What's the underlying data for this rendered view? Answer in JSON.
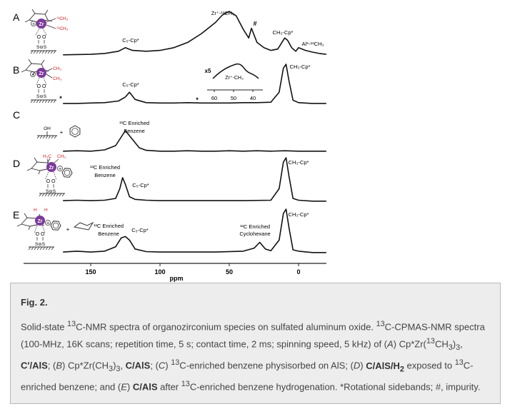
{
  "chart_data": {
    "type": "line",
    "xlabel": "ppm",
    "x_ticks": [
      "150",
      "100",
      "50",
      "0"
    ],
    "xlim": [
      170,
      -20
    ],
    "panels": [
      {
        "label": "A",
        "annotations": [
          "Zr⁺-¹³CH₃",
          "#",
          "CH₃-Cp*",
          "Al*-¹³CH₃",
          "C₅-Cp*"
        ],
        "series": [
          {
            "x": [
              170,
              150,
              140,
              130,
              125,
              120,
              110,
              100,
              90,
              80,
              70,
              60,
              55,
              50,
              45,
              40,
              36,
              34,
              30,
              25,
              20,
              15,
              10,
              8,
              5,
              2,
              0,
              -5,
              -10,
              -15,
              -20
            ],
            "y": [
              0.02,
              0.03,
              0.05,
              0.1,
              0.18,
              0.12,
              0.1,
              0.12,
              0.18,
              0.3,
              0.5,
              0.75,
              0.92,
              1.0,
              0.9,
              0.6,
              0.4,
              0.62,
              0.3,
              0.18,
              0.12,
              0.15,
              0.4,
              0.35,
              0.18,
              0.1,
              0.18,
              0.12,
              0.08,
              0.05,
              0.03
            ]
          }
        ]
      },
      {
        "label": "B",
        "annotations": [
          "CH₃-Cp*",
          "C₅-Cp*",
          "*",
          "*"
        ],
        "inset": {
          "annotations": [
            "x5",
            "Zr⁺-CH₃"
          ],
          "x_ticks": [
            "60",
            "50",
            "40"
          ]
        },
        "series": [
          {
            "x": [
              170,
              160,
              150,
              140,
              130,
              125,
              122,
              118,
              110,
              100,
              90,
              80,
              70,
              60,
              50,
              40,
              30,
              20,
              14,
              11,
              9,
              7,
              4,
              0,
              -10,
              -20
            ],
            "y": [
              0.02,
              0.02,
              0.03,
              0.04,
              0.08,
              0.18,
              0.3,
              0.12,
              0.04,
              0.03,
              0.03,
              0.04,
              0.03,
              0.03,
              0.03,
              0.04,
              0.04,
              0.05,
              0.3,
              0.9,
              1.0,
              0.6,
              0.1,
              0.04,
              0.02,
              0.02
            ]
          }
        ]
      },
      {
        "label": "C",
        "annotations": [
          "¹³C Enriched",
          "Benzene"
        ],
        "series": [
          {
            "x": [
              170,
              160,
              150,
              140,
              132,
              128,
              125,
              120,
              115,
              110,
              100,
              90,
              80,
              70,
              60,
              50,
              40,
              30,
              20,
              10,
              0,
              -10,
              -20
            ],
            "y": [
              0.02,
              0.03,
              0.02,
              0.05,
              0.15,
              0.35,
              0.5,
              0.3,
              0.1,
              0.04,
              0.02,
              0.02,
              0.03,
              0.02,
              0.02,
              0.03,
              0.02,
              0.03,
              0.02,
              0.03,
              0.02,
              0.02,
              0.02
            ]
          }
        ]
      },
      {
        "label": "D",
        "annotations": [
          "¹³C Enriched",
          "Benzene",
          "C₅-Cp*",
          "CH₃-Cp*"
        ],
        "series": [
          {
            "x": [
              170,
              160,
              150,
              140,
              132,
              129,
              127,
              125,
              122,
              118,
              110,
              100,
              80,
              60,
              40,
              20,
              14,
              11,
              9,
              7,
              4,
              0,
              -10,
              -20
            ],
            "y": [
              0.03,
              0.04,
              0.03,
              0.04,
              0.08,
              0.3,
              0.55,
              0.4,
              0.12,
              0.06,
              0.04,
              0.03,
              0.03,
              0.03,
              0.03,
              0.04,
              0.3,
              0.9,
              1.0,
              0.6,
              0.08,
              0.04,
              0.02,
              0.02
            ]
          }
        ]
      },
      {
        "label": "E",
        "annotations": [
          "¹³C Enriched",
          "Benzene",
          "C₅-Cp*",
          "¹³C Enriched",
          "Cyclohexane",
          "CH₃-Cp*"
        ],
        "series": [
          {
            "x": [
              170,
              160,
              150,
              140,
              132,
              128,
              125,
              122,
              118,
              110,
              100,
              80,
              60,
              40,
              32,
              28,
              24,
              20,
              14,
              11,
              9,
              7,
              4,
              0,
              -10,
              -20
            ],
            "y": [
              0.03,
              0.05,
              0.03,
              0.05,
              0.15,
              0.35,
              0.38,
              0.3,
              0.1,
              0.04,
              0.03,
              0.03,
              0.03,
              0.05,
              0.12,
              0.25,
              0.1,
              0.06,
              0.3,
              0.9,
              1.0,
              0.6,
              0.08,
              0.05,
              0.02,
              0.02
            ]
          }
        ]
      }
    ]
  },
  "caption": {
    "title": "Fig. 2.",
    "body_html": "Solid-state <sup>13</sup>C-NMR spectra of organozirconium species on sulfated aluminum oxide. <sup>13</sup>C-CPMAS-NMR spectra (100-MHz, 16K scans; repetition time, 5 s; contact time, 2 ms; spinning speed, 5 kHz) of (<i>A</i>) Cp*Zr(<sup>13</sup>CH<sub>3</sub>)<sub>3</sub>, <b>C′/AlS</b>; (<i>B</i>) Cp*Zr(CH<sub>3</sub>)<sub>3</sub>, <b>C/AlS</b>; (<i>C</i>) <sup>13</sup>C-enriched benzene physisorbed on AlS; (<i>D</i>) <b>C/AlS/H<sub>2</sub></b> exposed to <sup>13</sup>C-enriched benzene; and (<i>E</i>) <b>C/AlS</b> after <sup>13</sup>C-enriched benzene hydrogenation. *Rotational sidebands; #, impurity."
  },
  "colors": {
    "trace": "#111111",
    "accent_red": "#d0201e",
    "zr_purple": "#7c3a9a",
    "caption_bg": "#ededed",
    "caption_border": "#b9b9b9"
  },
  "molecule_labels": {
    "A_methyl_1": "¹³CH₃",
    "A_methyl_2": "¹³CH₃",
    "B_methyl_1": "CH₃",
    "B_methyl_2": "CH₃",
    "D_methyl_1": "H₃C",
    "D_methyl_2": "CH₃",
    "E_h_1": "H",
    "E_h_2": "H",
    "zr": "Zr",
    "plus": "+",
    "oh": "OH"
  }
}
